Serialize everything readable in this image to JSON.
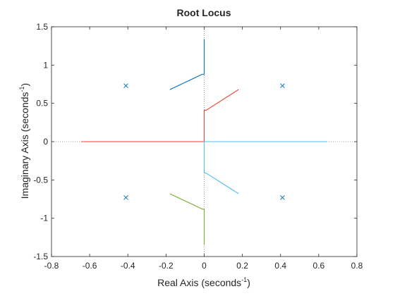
{
  "chart_data": {
    "type": "line",
    "title": "Root Locus",
    "xlabel": {
      "main": "Real  Axis  (seconds",
      "sup": "-1",
      "tail": ")"
    },
    "ylabel": {
      "main": "Imaginary  Axis  (seconds",
      "sup": "-1",
      "tail": ")"
    },
    "xlim": [
      -0.8,
      0.8
    ],
    "ylim": [
      -1.5,
      1.5
    ],
    "xticks": [
      -0.8,
      -0.6,
      -0.4,
      -0.2,
      0,
      0.2,
      0.4,
      0.6,
      0.8
    ],
    "xtick_labels": [
      "-0.8",
      "-0.6",
      "-0.4",
      "-0.2",
      "0",
      "0.2",
      "0.4",
      "0.6",
      "0.8"
    ],
    "yticks": [
      -1.5,
      -1,
      -0.5,
      0,
      0.5,
      1,
      1.5
    ],
    "ytick_labels": [
      "-1.5",
      "-1",
      "-0.5",
      "0",
      "0.5",
      "1",
      "1.5"
    ],
    "grid": false,
    "colors": {
      "blue": "#0072BD",
      "red": "#FF3B30",
      "green": "#77AC30",
      "cyan": "#4DBEEE",
      "pole": "#0072BD",
      "asymptote": "#7f7f7f",
      "axes": "#262626"
    },
    "asymptotes": [
      {
        "orientation": "horizontal",
        "value": 0
      },
      {
        "orientation": "vertical",
        "value": 0
      }
    ],
    "poles": [
      {
        "x": -0.41,
        "y": 0.73
      },
      {
        "x": 0.41,
        "y": 0.73
      },
      {
        "x": -0.41,
        "y": -0.73
      },
      {
        "x": 0.41,
        "y": -0.73
      }
    ],
    "series": [
      {
        "color": "blue",
        "points": [
          [
            -0.18,
            0.68
          ],
          [
            -0.01,
            0.88
          ],
          [
            0.0,
            0.88
          ],
          [
            0.0,
            1.34
          ]
        ]
      },
      {
        "color": "red",
        "points": [
          [
            0.18,
            0.68
          ],
          [
            0.01,
            0.41
          ],
          [
            0.0,
            0.41
          ],
          [
            0.0,
            0.0
          ],
          [
            -0.645,
            0.0
          ]
        ]
      },
      {
        "color": "green",
        "points": [
          [
            -0.18,
            -0.68
          ],
          [
            -0.01,
            -0.88
          ],
          [
            0.0,
            -0.88
          ],
          [
            0.0,
            -1.34
          ]
        ]
      },
      {
        "color": "cyan",
        "points": [
          [
            0.18,
            -0.68
          ],
          [
            0.01,
            -0.41
          ],
          [
            0.0,
            -0.41
          ],
          [
            0.0,
            0.0
          ],
          [
            0.645,
            0.0
          ]
        ]
      }
    ]
  }
}
